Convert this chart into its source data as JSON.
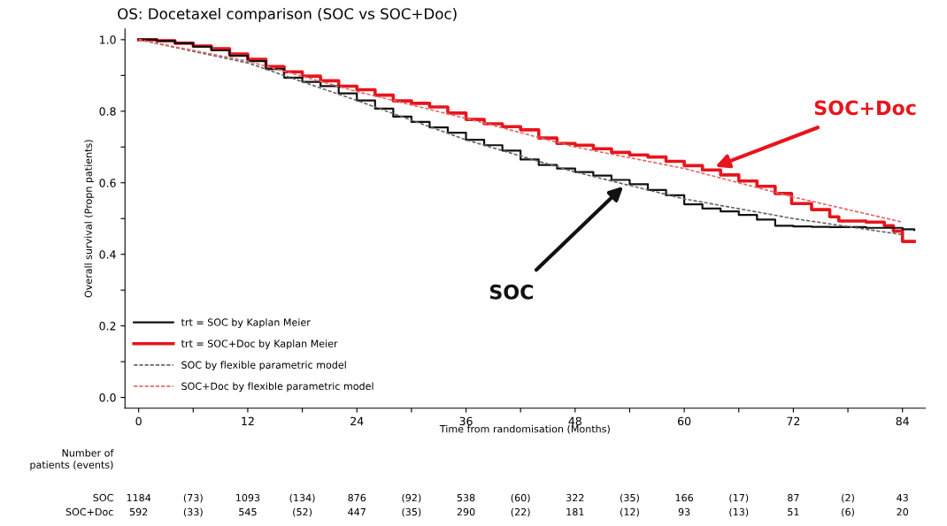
{
  "chart_data": {
    "type": "step",
    "title": "OS: Docetaxel comparison (SOC vs SOC+Doc)",
    "xlabel": "Time from randomisation (Months)",
    "ylabel": "Overall survival (Propn patients)",
    "xlim": [
      -1.5,
      86.5
    ],
    "ylim": [
      -0.03,
      1.03
    ],
    "xticks": [
      0,
      {
        "value": 6,
        "label": null
      },
      12,
      {
        "value": 18,
        "label": null
      },
      24,
      {
        "value": 30,
        "label": null
      },
      36,
      {
        "value": 42,
        "label": null
      },
      48,
      {
        "value": 54,
        "label": null
      },
      60,
      {
        "value": 66,
        "label": null
      },
      72,
      {
        "value": 78,
        "label": null
      },
      84
    ],
    "yticks": [
      {
        "value": 0,
        "label": "0.0"
      },
      {
        "value": 0.1,
        "label": null
      },
      0.2,
      {
        "value": 0.3,
        "label": null
      },
      0.4,
      {
        "value": 0.5,
        "label": null
      },
      0.6,
      {
        "value": 0.7,
        "label": null
      },
      0.8,
      {
        "value": 0.9,
        "label": null
      },
      {
        "value": 1,
        "label": "1.0"
      }
    ],
    "legend": "bottom left",
    "marker": "none",
    "series": [
      {
        "name": "trt = SOC by Kaplan Meier",
        "color": "#111111",
        "x": [
          0,
          2,
          4,
          6,
          8,
          10,
          12,
          14,
          16,
          18,
          20,
          22,
          24,
          26,
          28,
          30,
          32,
          34,
          36,
          38,
          40,
          42,
          44,
          46,
          48,
          50,
          52,
          54,
          56,
          58,
          60,
          62,
          64,
          66,
          68,
          70,
          72,
          74,
          76,
          80,
          84,
          85.3
        ],
        "values": [
          1.0,
          0.997,
          0.99,
          0.98,
          0.97,
          0.955,
          0.94,
          0.918,
          0.894,
          0.882,
          0.87,
          0.85,
          0.83,
          0.807,
          0.785,
          0.77,
          0.755,
          0.74,
          0.72,
          0.705,
          0.69,
          0.665,
          0.65,
          0.64,
          0.63,
          0.62,
          0.608,
          0.596,
          0.58,
          0.565,
          0.54,
          0.528,
          0.52,
          0.51,
          0.497,
          0.48,
          0.478,
          0.477,
          0.476,
          0.474,
          0.47,
          0.468
        ]
      },
      {
        "name": "trt = SOC+Doc by Kaplan Meier",
        "color": "#e8141c",
        "x": [
          0,
          2,
          4,
          6,
          8,
          10,
          12,
          14,
          16,
          18,
          20,
          22,
          24,
          26,
          28,
          30,
          32,
          34,
          36,
          38,
          40,
          42,
          44,
          46,
          48,
          50,
          52,
          54,
          56,
          58,
          60,
          62,
          64,
          66,
          68,
          70,
          71.8,
          74,
          76,
          77,
          80,
          82,
          83,
          84,
          85.3
        ],
        "values": [
          1.0,
          0.997,
          0.99,
          0.982,
          0.975,
          0.96,
          0.945,
          0.925,
          0.91,
          0.898,
          0.885,
          0.87,
          0.86,
          0.845,
          0.829,
          0.822,
          0.812,
          0.795,
          0.777,
          0.765,
          0.757,
          0.748,
          0.725,
          0.71,
          0.705,
          0.695,
          0.685,
          0.678,
          0.672,
          0.66,
          0.648,
          0.636,
          0.622,
          0.605,
          0.59,
          0.57,
          0.542,
          0.525,
          0.505,
          0.493,
          0.49,
          0.48,
          0.465,
          0.436,
          0.436
        ]
      },
      {
        "name": "SOC by flexible parametric model",
        "type": "line",
        "line_style": "dashed",
        "color": "#666666",
        "x": [
          0,
          12,
          24,
          36,
          48,
          60,
          72,
          84
        ],
        "values": [
          1.0,
          0.935,
          0.83,
          0.72,
          0.63,
          0.555,
          0.5,
          0.455
        ]
      },
      {
        "name": "SOC+Doc by flexible parametric model",
        "type": "line",
        "line_style": "dashed",
        "color": "#e06a6a",
        "x": [
          0,
          12,
          24,
          36,
          48,
          60,
          72,
          84
        ],
        "values": [
          1.0,
          0.94,
          0.855,
          0.78,
          0.7,
          0.64,
          0.56,
          0.49
        ]
      }
    ],
    "annotations": [
      "Number of\npatients (events)",
      "SOC",
      "1184",
      "(73)",
      "1093",
      "(134)",
      "876",
      "(92)",
      "538",
      "(60)",
      "322",
      "(35)",
      "166",
      "(17)",
      "87",
      "(2)",
      "43",
      "SOC+Doc",
      "592",
      "(33)",
      "545",
      "(52)",
      "447",
      "(35)",
      "290",
      "(22)",
      "181",
      "(12)",
      "93",
      "(13)",
      "51",
      "(6)",
      "20",
      {
        "text": "SOC+Doc",
        "x": 63.4,
        "y": 0.645
      },
      {
        "text": "SOC",
        "x": 53.3,
        "y": 0.59
      }
    ]
  }
}
